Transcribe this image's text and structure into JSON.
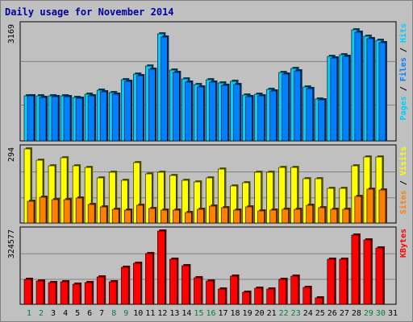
{
  "title": "Daily usage for November 2014",
  "colors": {
    "background": "#c0c0c0",
    "panel": "#c0c0c0",
    "hits": "#00ccff",
    "files": "#0080ff",
    "pages": "#00ccff",
    "visits": "#ffff00",
    "sites": "#ff8000",
    "kbytes": "#ff0000",
    "title": "#0000a0",
    "weekend": "#008040",
    "weekday": "#000000"
  },
  "legend": {
    "top": [
      {
        "text": "Pages",
        "color": "#00ccff"
      },
      {
        "text": " / ",
        "color": "#000000"
      },
      {
        "text": "Files",
        "color": "#0080ff"
      },
      {
        "text": " / ",
        "color": "#000000"
      },
      {
        "text": "Hits",
        "color": "#00ccff"
      }
    ],
    "middle": [
      {
        "text": "Sites",
        "color": "#ff8000"
      },
      {
        "text": " / ",
        "color": "#000000"
      },
      {
        "text": "Visits",
        "color": "#ffff00"
      }
    ],
    "bottom": [
      {
        "text": "KBytes",
        "color": "#ff0000"
      }
    ]
  },
  "chart_data": {
    "type": "bar",
    "title": "Daily usage for November 2014",
    "categories": [
      "1",
      "2",
      "3",
      "4",
      "5",
      "6",
      "7",
      "8",
      "9",
      "10",
      "11",
      "12",
      "13",
      "14",
      "15",
      "16",
      "17",
      "18",
      "19",
      "20",
      "21",
      "22",
      "23",
      "24",
      "25",
      "26",
      "27",
      "28",
      "29",
      "30",
      "31"
    ],
    "weekend_days": [
      1,
      2,
      8,
      9,
      15,
      16,
      22,
      23,
      29,
      30
    ],
    "panels": [
      {
        "name": "hits-files",
        "ymax": 3169,
        "ymax_label": "3169",
        "series": [
          {
            "name": "Hits",
            "color": "#00ccff",
            "values": [
              1250,
              1230,
              1250,
              1250,
              1200,
              1275,
              1400,
              1320,
              1690,
              1850,
              2050,
              2950,
              1960,
              1700,
              1550,
              1680,
              1600,
              1650,
              1270,
              1280,
              1420,
              1890,
              1990,
              1480,
              1160,
              2330,
              2380,
              3050,
              2890,
              2780,
              0
            ]
          },
          {
            "name": "Files",
            "color": "#0080ff",
            "values": [
              1240,
              1200,
              1210,
              1220,
              1170,
              1240,
              1360,
              1280,
              1640,
              1790,
              1980,
              2860,
              1880,
              1610,
              1480,
              1620,
              1530,
              1560,
              1220,
              1230,
              1380,
              1830,
              1930,
              1440,
              1140,
              2280,
              2320,
              3000,
              2820,
              2700,
              0
            ]
          }
        ]
      },
      {
        "name": "visits-sites",
        "ymax": 294,
        "ymax_label": "294",
        "series": [
          {
            "name": "Visits",
            "color": "#ffff00",
            "values": [
              294,
              248,
              228,
              260,
              228,
              220,
              180,
              200,
              170,
              240,
              195,
              200,
              190,
              170,
              163,
              180,
              215,
              148,
              160,
              200,
              200,
              220,
              220,
              176,
              175,
              138,
              136,
              226,
              263,
              263,
              0
            ]
          },
          {
            "name": "Sites",
            "color": "#ff8000",
            "values": [
              86,
              102,
              93,
              93,
              100,
              72,
              63,
              55,
              50,
              70,
              57,
              51,
              50,
              40,
              53,
              66,
              60,
              50,
              63,
              48,
              50,
              54,
              53,
              70,
              60,
              53,
              55,
              105,
              135,
              132,
              0
            ]
          }
        ]
      },
      {
        "name": "kbytes",
        "ymax": 324577,
        "ymax_label": "324577",
        "series": [
          {
            "name": "KBytes",
            "color": "#ff0000",
            "values": [
              111000,
              103000,
              98000,
              100000,
              88000,
              96000,
              121000,
              100000,
              164000,
              182000,
              225000,
              324577,
              199000,
              171000,
              119000,
              102000,
              66000,
              124000,
              54000,
              70000,
              68000,
              110000,
              124000,
              74000,
              28000,
              200000,
              198000,
              308000,
              285000,
              248000,
              0
            ]
          }
        ]
      }
    ]
  }
}
